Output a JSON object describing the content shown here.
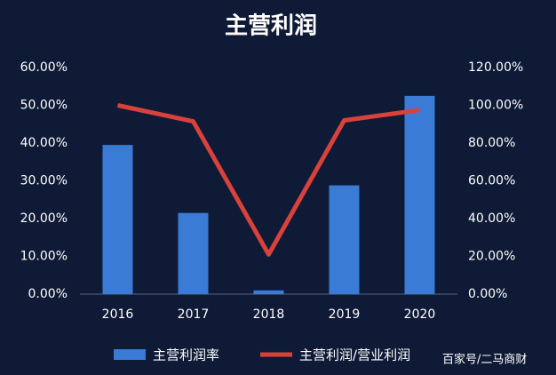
{
  "chart_data": {
    "type": "bar-line",
    "title": "主营利润",
    "categories": [
      "2016",
      "2017",
      "2018",
      "2019",
      "2020"
    ],
    "series": [
      {
        "name": "主营利润率",
        "type": "bar",
        "color": "#3a7bd5",
        "values": [
          39.5,
          21.5,
          1,
          28.8,
          52.5
        ]
      },
      {
        "name": "主营利润/营业利润",
        "type": "line",
        "axis": "y2",
        "color": "#d9413b",
        "values": [
          100,
          91.5,
          21,
          92,
          97.5
        ]
      }
    ],
    "ylim": [
      0,
      60
    ],
    "yticks": [
      {
        "value": 0,
        "label": "0.00%"
      },
      {
        "value": 10,
        "label": "10.00%"
      },
      {
        "value": 20,
        "label": "20.00%"
      },
      {
        "value": 30,
        "label": "30.00%"
      },
      {
        "value": 40,
        "label": "40.00%"
      },
      {
        "value": 50,
        "label": "50.00%"
      },
      {
        "value": 60,
        "label": "60.00%"
      }
    ],
    "y2lim": [
      0,
      120
    ],
    "y2ticks": [
      {
        "value": 0,
        "label": "0.00%"
      },
      {
        "value": 20,
        "label": "20.00%"
      },
      {
        "value": 40,
        "label": "40.00%"
      },
      {
        "value": 60,
        "label": "60.00%"
      },
      {
        "value": 80,
        "label": "80.00%"
      },
      {
        "value": 100,
        "label": "100.00%"
      },
      {
        "value": 120,
        "label": "120.00%"
      }
    ],
    "grid": false,
    "legend": "bottom",
    "watermark": "百家号/二马商财"
  }
}
